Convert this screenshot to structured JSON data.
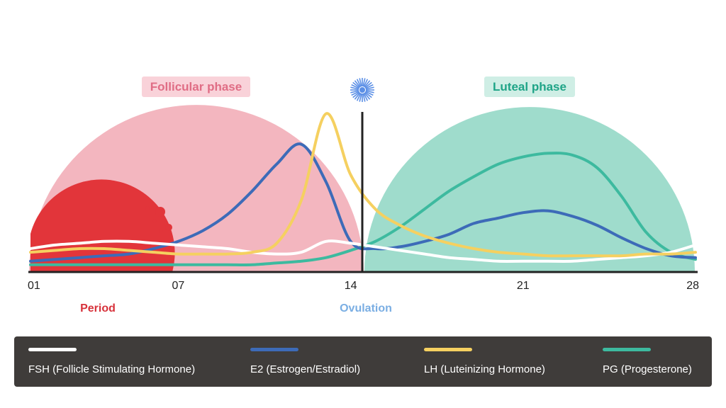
{
  "chart_data": {
    "type": "line",
    "x": [
      1,
      2,
      3,
      4,
      5,
      6,
      7,
      8,
      9,
      10,
      11,
      12,
      13,
      14,
      15,
      16,
      17,
      18,
      19,
      20,
      21,
      22,
      23,
      24,
      25,
      26,
      27,
      28
    ],
    "xticks": [
      "01",
      "07",
      "14",
      "21",
      "28"
    ],
    "xtick_days": [
      1,
      7,
      14,
      21,
      28
    ],
    "xlim": [
      1,
      28
    ],
    "ylim": [
      0,
      100
    ],
    "grid": false,
    "series": [
      {
        "name": "FSH (Follicle Stimulating Hormone)",
        "color": "#ffffff",
        "values": [
          13,
          15,
          16,
          17,
          17,
          16,
          15,
          14,
          13,
          11,
          10,
          11,
          17,
          16,
          14,
          12,
          10,
          8,
          7,
          6,
          6,
          6,
          6,
          7,
          8,
          9,
          11,
          15
        ]
      },
      {
        "name": "E2 (Estrogen/Estradiol)",
        "color": "#3d6bb8",
        "values": [
          6,
          7,
          8,
          9,
          10,
          13,
          17,
          23,
          32,
          45,
          60,
          71,
          50,
          17,
          13,
          14,
          17,
          21,
          27,
          30,
          33,
          34,
          31,
          26,
          19,
          13,
          9,
          8
        ]
      },
      {
        "name": "LH (Luteinizing Hormone)",
        "color": "#f5d060",
        "values": [
          11,
          12,
          13,
          13,
          12,
          11,
          10,
          10,
          10,
          11,
          16,
          40,
          88,
          54,
          35,
          26,
          20,
          16,
          13,
          11,
          10,
          9,
          9,
          9,
          9,
          10,
          10,
          11
        ]
      },
      {
        "name": "PG (Progesterone)",
        "color": "#3dba9f",
        "values": [
          4,
          4,
          4,
          4,
          4,
          4,
          4,
          4,
          4,
          4,
          5,
          6,
          8,
          12,
          17,
          25,
          35,
          45,
          53,
          60,
          64,
          66,
          65,
          58,
          42,
          22,
          11,
          7
        ]
      }
    ],
    "annotations": {
      "follicular": "Follicular phase",
      "luteal": "Luteal phase",
      "period": "Period",
      "ovulation": "Ovulation"
    },
    "colors": {
      "follicular_fill": "#f3b6bf",
      "follicular_text": "#e06d85",
      "follicular_badge": "#f9d2d9",
      "luteal_fill": "#9fdccc",
      "luteal_text": "#1fa487",
      "luteal_badge": "#cfeee5",
      "period_fill": "#e2353a",
      "period_text": "#d7323b",
      "ovulation_text": "#7aaee3",
      "sun": "#5b8fe6",
      "axis": "#222222",
      "legend_bg": "#3f3c3a"
    },
    "legend_position": "bottom"
  }
}
